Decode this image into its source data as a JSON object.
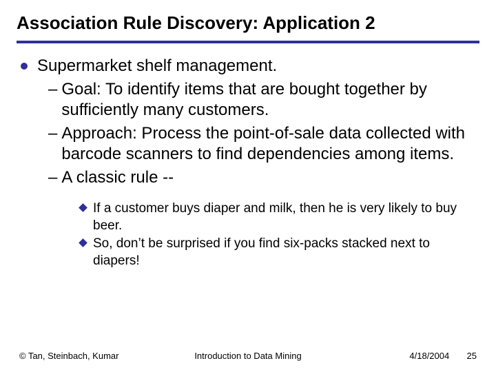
{
  "title": {
    "text": "Association Rule Discovery: Application 2",
    "fontsize": 26,
    "color": "#000000"
  },
  "rule_color": "#2f2f99",
  "background": "#ffffff",
  "body": {
    "l1_fontsize": 24,
    "l2_fontsize": 24,
    "l3_fontsize": 19,
    "l1_bullet_color": "#2f2f99",
    "l3_diamond_color": "#2f2f99",
    "text_color": "#000000",
    "items": [
      {
        "level": 1,
        "text": "Supermarket shelf management."
      },
      {
        "level": 2,
        "text": "Goal: To identify items that are bought together by sufficiently many customers."
      },
      {
        "level": 2,
        "text": "Approach: Process the point-of-sale data collected with barcode scanners to find dependencies among items."
      },
      {
        "level": 2,
        "text": "A classic rule --"
      },
      {
        "level": 3,
        "text": "If a customer buys diaper and milk, then he is very likely to buy beer."
      },
      {
        "level": 3,
        "text": "So, don’t be surprised if you find six-packs stacked next to diapers!"
      }
    ]
  },
  "footer": {
    "fontsize": 13,
    "left": "© Tan, Steinbach, Kumar",
    "center": "Introduction to Data Mining",
    "date": "4/18/2004",
    "page": "25"
  }
}
